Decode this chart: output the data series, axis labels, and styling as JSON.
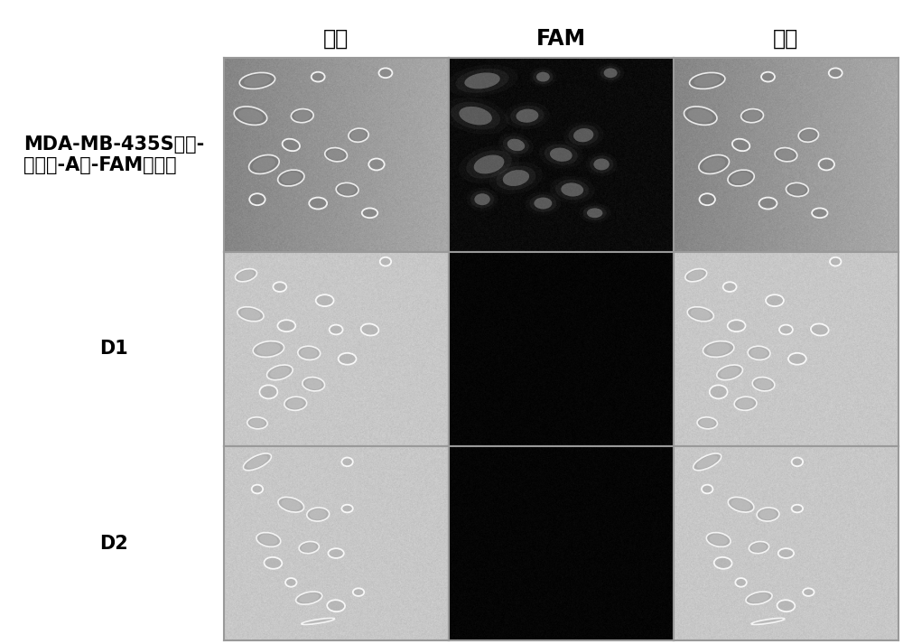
{
  "col_headers": [
    "白光",
    "FAM",
    "重叠"
  ],
  "row_labels": [
    "MDA-MB-435S细胞-\n整合素-A链-FAM复合物",
    "D1",
    "D2"
  ],
  "background_color": "#ffffff",
  "title_fontsize": 17,
  "label_fontsize": 15,
  "row0_bg": 0.6,
  "row1_bg": 0.78,
  "row2_bg": 0.78,
  "fam_row0_bg": 0.04,
  "fam_row12_bg": 0.02,
  "cell_edge_color": "#ffffff",
  "cell_dark_color": "#404040"
}
